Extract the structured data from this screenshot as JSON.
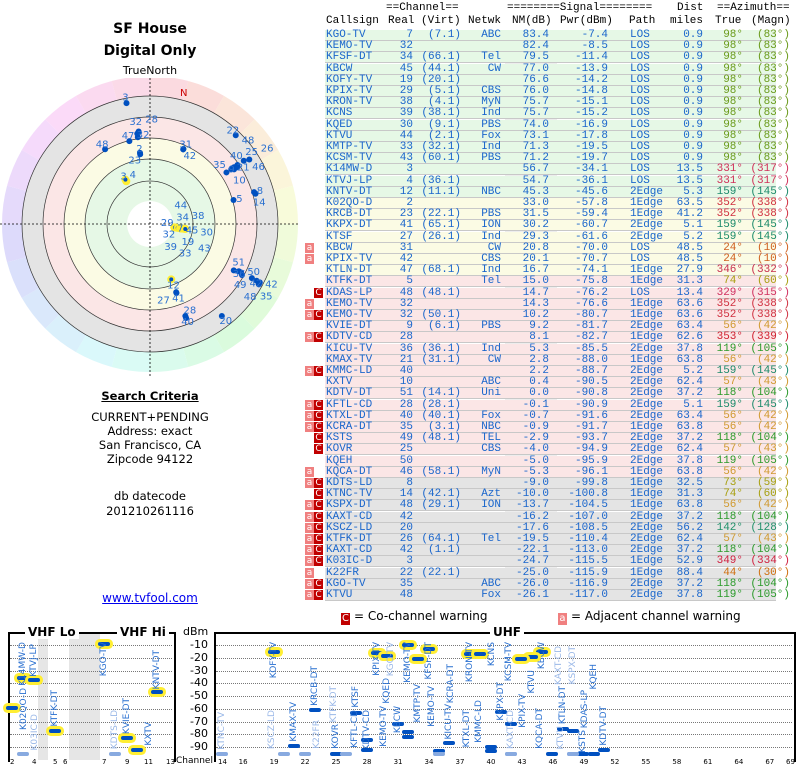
{
  "header": {
    "title": "SF House",
    "subtitle": "Digital Only",
    "true_north": "TrueNorth",
    "north_mark": "N"
  },
  "criteria": {
    "heading": "Search Criteria",
    "lines": [
      "CURRENT+PENDING",
      "Address: exact",
      "San Francisco, CA",
      "Zipcode 94122"
    ],
    "db_label": "db datecode",
    "db_value": "201210261116"
  },
  "link": "www.tvfool.com",
  "table": {
    "group_channel": "==Channel==",
    "group_signal": "========Signal========",
    "group_azimuth": "==Azimuth==",
    "dist_top": "Dist",
    "columns": [
      "Callsign",
      "Real",
      "(Virt)",
      "Netwk",
      "NM(dB)",
      "Pwr(dBm)",
      "Path",
      "miles",
      "True",
      "(Magn)"
    ],
    "rows": [
      [
        "KGO-TV",
        "7",
        "(7.1)",
        "ABC",
        "83.4",
        "-7.4",
        "LOS",
        "0.9",
        "98°",
        "(83°)",
        "green",
        "",
        "#6a9a1a"
      ],
      [
        "KEMO-TV",
        "32",
        "",
        "",
        "82.4",
        "-8.5",
        "LOS",
        "0.9",
        "98°",
        "(83°)",
        "green",
        "",
        "#6a9a1a"
      ],
      [
        "KFSF-DT",
        "34",
        "(66.1)",
        "Tel",
        "79.5",
        "-11.4",
        "LOS",
        "0.9",
        "98°",
        "(83°)",
        "green",
        "",
        "#6a9a1a"
      ],
      [
        "KBCW",
        "45",
        "(44.1)",
        "CW",
        "77.0",
        "-13.9",
        "LOS",
        "0.9",
        "98°",
        "(83°)",
        "green",
        "",
        "#6a9a1a"
      ],
      [
        "KOFY-TV",
        "19",
        "(20.1)",
        "",
        "76.6",
        "-14.2",
        "LOS",
        "0.9",
        "98°",
        "(83°)",
        "green",
        "",
        "#6a9a1a"
      ],
      [
        "KPIX-TV",
        "29",
        "(5.1)",
        "CBS",
        "76.0",
        "-14.8",
        "LOS",
        "0.9",
        "98°",
        "(83°)",
        "green",
        "",
        "#6a9a1a"
      ],
      [
        "KRON-TV",
        "38",
        "(4.1)",
        "MyN",
        "75.7",
        "-15.1",
        "LOS",
        "0.9",
        "98°",
        "(83°)",
        "green",
        "",
        "#6a9a1a"
      ],
      [
        "KCNS",
        "39",
        "(38.1)",
        "Ind",
        "75.7",
        "-15.2",
        "LOS",
        "0.9",
        "98°",
        "(83°)",
        "green",
        "",
        "#6a9a1a"
      ],
      [
        "KQED",
        "30",
        "(9.1)",
        "PBS",
        "74.0",
        "-16.9",
        "LOS",
        "0.9",
        "98°",
        "(83°)",
        "green",
        "",
        "#6a9a1a"
      ],
      [
        "KTVU",
        "44",
        "(2.1)",
        "Fox",
        "73.1",
        "-17.8",
        "LOS",
        "0.9",
        "98°",
        "(83°)",
        "green",
        "",
        "#6a9a1a"
      ],
      [
        "KMTP-TV",
        "33",
        "(32.1)",
        "Ind",
        "71.3",
        "-19.5",
        "LOS",
        "0.9",
        "98°",
        "(83°)",
        "green",
        "",
        "#6a9a1a"
      ],
      [
        "KCSM-TV",
        "43",
        "(60.1)",
        "PBS",
        "71.2",
        "-19.7",
        "LOS",
        "0.9",
        "98°",
        "(83°)",
        "green",
        "",
        "#6a9a1a"
      ],
      [
        "K14MW-D",
        "3",
        "",
        "",
        "56.7",
        "-34.1",
        "LOS",
        "13.5",
        "331°",
        "(317°)",
        "green",
        "",
        "#d0305a"
      ],
      [
        "KTVJ-LP",
        "4",
        "(36.1)",
        "",
        "54.7",
        "-36.1",
        "LOS",
        "13.5",
        "331°",
        "(317°)",
        "green",
        "",
        "#d0305a"
      ],
      [
        "KNTV-DT",
        "12",
        "(11.1)",
        "NBC",
        "45.3",
        "-45.6",
        "2Edge",
        "5.3",
        "159°",
        "(145°)",
        "green",
        "",
        "#1a8a6a"
      ],
      [
        "K02QO-D",
        "2",
        "",
        "",
        "33.0",
        "-57.8",
        "1Edge",
        "63.5",
        "352°",
        "(338°)",
        "yellow",
        "",
        "#d03040"
      ],
      [
        "KRCB-DT",
        "23",
        "(22.1)",
        "PBS",
        "31.5",
        "-59.4",
        "1Edge",
        "41.2",
        "352°",
        "(338°)",
        "yellow",
        "",
        "#d03040"
      ],
      [
        "KKPX-DT",
        "41",
        "(65.1)",
        "ION",
        "30.2",
        "-60.7",
        "2Edge",
        "5.1",
        "159°",
        "(145°)",
        "yellow",
        "",
        "#1a8a6a"
      ],
      [
        "KTSF",
        "27",
        "(26.1)",
        "Ind",
        "29.3",
        "-61.6",
        "2Edge",
        "5.2",
        "159°",
        "(145°)",
        "yellow",
        "",
        "#1a8a6a"
      ],
      [
        "KBCW",
        "31",
        "",
        "CW",
        "20.8",
        "-70.0",
        "LOS",
        "48.5",
        "24°",
        "(10°)",
        "yellow",
        "a",
        "#d06020"
      ],
      [
        "KPIX-TV",
        "42",
        "",
        "CBS",
        "20.1",
        "-70.7",
        "LOS",
        "48.5",
        "24°",
        "(10°)",
        "yellow",
        "a",
        "#d06020"
      ],
      [
        "KTLN-DT",
        "47",
        "(68.1)",
        "Ind",
        "16.7",
        "-74.1",
        "1Edge",
        "27.9",
        "346°",
        "(332°)",
        "yellow",
        "",
        "#c83050"
      ],
      [
        "KTFK-DT",
        "5",
        "",
        "Tel",
        "15.0",
        "-75.8",
        "1Edge",
        "31.3",
        "74°",
        "(60°)",
        "pink",
        "",
        "#a8a010"
      ],
      [
        "KDAS-LP",
        "48",
        "(48.1)",
        "",
        "14.7",
        "-76.2",
        "LOS",
        "13.4",
        "329°",
        "(315°)",
        "pink",
        "C",
        "#d03060"
      ],
      [
        "KEMO-TV",
        "32",
        "",
        "",
        "14.3",
        "-76.6",
        "1Edge",
        "63.6",
        "352°",
        "(338°)",
        "pink",
        "a",
        "#d03040"
      ],
      [
        "KEMO-TV",
        "32",
        "(50.1)",
        "",
        "10.2",
        "-80.7",
        "1Edge",
        "63.6",
        "352°",
        "(338°)",
        "pink",
        "aC",
        "#d03040"
      ],
      [
        "KVIE-DT",
        "9",
        "(6.1)",
        "PBS",
        "9.2",
        "-81.7",
        "2Edge",
        "63.4",
        "56°",
        "(42°)",
        "pink",
        "",
        "#d09a30"
      ],
      [
        "KDTV-CD",
        "28",
        "",
        "",
        "8.1",
        "-82.7",
        "1Edge",
        "62.6",
        "353°",
        "(339°)",
        "pink",
        "aC",
        "#d02030"
      ],
      [
        "KICU-TV",
        "36",
        "(36.1)",
        "Ind",
        "5.3",
        "-85.5",
        "2Edge",
        "37.8",
        "119°",
        "(105°)",
        "pink",
        "",
        "#2a9a2a"
      ],
      [
        "KMAX-TV",
        "21",
        "(31.1)",
        "CW",
        "2.8",
        "-88.0",
        "1Edge",
        "63.8",
        "56°",
        "(42°)",
        "pink",
        "",
        "#d09a30"
      ],
      [
        "KMMC-LD",
        "40",
        "",
        "",
        "2.2",
        "-88.7",
        "2Edge",
        "5.2",
        "159°",
        "(145°)",
        "pink",
        "aC",
        "#1a8a6a"
      ],
      [
        "KXTV",
        "10",
        "",
        "ABC",
        "0.4",
        "-90.5",
        "2Edge",
        "62.4",
        "57°",
        "(43°)",
        "pink",
        "",
        "#d09a30"
      ],
      [
        "KDTV-DT",
        "51",
        "(14.1)",
        "Uni",
        "0.0",
        "-90.8",
        "2Edge",
        "37.2",
        "118°",
        "(104°)",
        "pink",
        "",
        "#2a9a2a"
      ],
      [
        "KFTL-CD",
        "28",
        "(28.1)",
        "",
        "-0.1",
        "-90.9",
        "2Edge",
        "5.1",
        "159°",
        "(145°)",
        "pink",
        "aC",
        "#1a8a6a"
      ],
      [
        "KTXL-DT",
        "40",
        "(40.1)",
        "Fox",
        "-0.7",
        "-91.6",
        "2Edge",
        "63.4",
        "56°",
        "(42°)",
        "pink",
        "aC",
        "#d09a30"
      ],
      [
        "KCRA-DT",
        "35",
        "(3.1)",
        "NBC",
        "-0.9",
        "-91.7",
        "1Edge",
        "63.8",
        "56°",
        "(42°)",
        "pink",
        "aC",
        "#d09a30"
      ],
      [
        "KSTS",
        "49",
        "(48.1)",
        "TEL",
        "-2.9",
        "-93.7",
        "2Edge",
        "37.2",
        "118°",
        "(104°)",
        "pink",
        "C",
        "#2a9a2a"
      ],
      [
        "KOVR",
        "25",
        "",
        "CBS",
        "-4.0",
        "-94.9",
        "2Edge",
        "62.4",
        "57°",
        "(43°)",
        "pink",
        "C",
        "#d09a30"
      ],
      [
        "KQEH",
        "50",
        "",
        "",
        "-5.0",
        "-95.9",
        "2Edge",
        "37.8",
        "119°",
        "(105°)",
        "pink",
        "",
        "#2a9a2a"
      ],
      [
        "KQCA-DT",
        "46",
        "(58.1)",
        "MyN",
        "-5.3",
        "-96.1",
        "1Edge",
        "63.8",
        "56°",
        "(42°)",
        "pink",
        "a",
        "#d09a30"
      ],
      [
        "KDTS-LD",
        "8",
        "",
        "",
        "-9.0",
        "-99.8",
        "1Edge",
        "32.5",
        "73°",
        "(59°)",
        "gray",
        "aC",
        "#a8a010"
      ],
      [
        "KTNC-TV",
        "14",
        "(42.1)",
        "Azt",
        "-10.0",
        "-100.8",
        "1Edge",
        "31.3",
        "74°",
        "(60°)",
        "gray",
        "C",
        "#a8a010"
      ],
      [
        "KSPX-DT",
        "48",
        "(29.1)",
        "ION",
        "-13.7",
        "-104.5",
        "1Edge",
        "63.8",
        "56°",
        "(42°)",
        "gray",
        "aC",
        "#d09a30"
      ],
      [
        "KAXT-CD",
        "42",
        "",
        "",
        "-16.2",
        "-107.0",
        "2Edge",
        "37.2",
        "118°",
        "(104°)",
        "gray",
        "aC",
        "#2a9a2a"
      ],
      [
        "KSCZ-LD",
        "20",
        "",
        "",
        "-17.6",
        "-108.5",
        "2Edge",
        "56.2",
        "142°",
        "(128°)",
        "gray",
        "aC",
        "#20906a"
      ],
      [
        "KTFK-DT",
        "26",
        "(64.1)",
        "Tel",
        "-19.5",
        "-110.4",
        "2Edge",
        "62.4",
        "57°",
        "(43°)",
        "gray",
        "aC",
        "#d09a30"
      ],
      [
        "KAXT-CD",
        "42",
        "(1.1)",
        "",
        "-22.1",
        "-113.0",
        "2Edge",
        "37.2",
        "118°",
        "(104°)",
        "gray",
        "aC",
        "#2a9a2a"
      ],
      [
        "K03IC-D",
        "3",
        "",
        "",
        "-24.7",
        "-115.5",
        "1Edge",
        "52.9",
        "349°",
        "(334°)",
        "gray",
        "aC",
        "#d02040"
      ],
      [
        "K22FR",
        "22",
        "(22.1)",
        "",
        "-25.0",
        "-115.9",
        "1Edge",
        "88.4",
        "44°",
        "(30°)",
        "gray",
        "a",
        "#d07010"
      ],
      [
        "KGO-TV",
        "35",
        "",
        "ABC",
        "-26.0",
        "-116.9",
        "2Edge",
        "37.2",
        "118°",
        "(104°)",
        "gray",
        "aC",
        "#2a9a2a"
      ],
      [
        "KTVU",
        "48",
        "",
        "Fox",
        "-26.1",
        "-117.0",
        "2Edge",
        "37.8",
        "119°",
        "(105°)",
        "gray",
        "aC",
        "#2a9a2a"
      ]
    ]
  },
  "legend": {
    "co_mark": "C",
    "co_label": "= Co-channel warning",
    "adj_mark": "a",
    "adj_label": "= Adjacent channel warning"
  },
  "spectrum": {
    "vhf_lo": "VHF Lo",
    "vhf_hi": "VHF Hi",
    "uhf": "UHF",
    "unit": "dBm",
    "axis_label": "Channel",
    "dbm_ticks": [
      "-10",
      "-20",
      "-30",
      "-40",
      "-50",
      "-60",
      "-70",
      "-80",
      "-90"
    ],
    "vhf_ticks": [
      "2",
      "4",
      "5",
      "6",
      "7",
      "9",
      "11",
      "13"
    ],
    "uhf_ticks": [
      "14",
      "16",
      "19",
      "22",
      "25",
      "28",
      "31",
      "34",
      "37",
      "40",
      "43",
      "46",
      "49",
      "52",
      "55",
      "58",
      "61",
      "64",
      "67",
      "69"
    ]
  }
}
